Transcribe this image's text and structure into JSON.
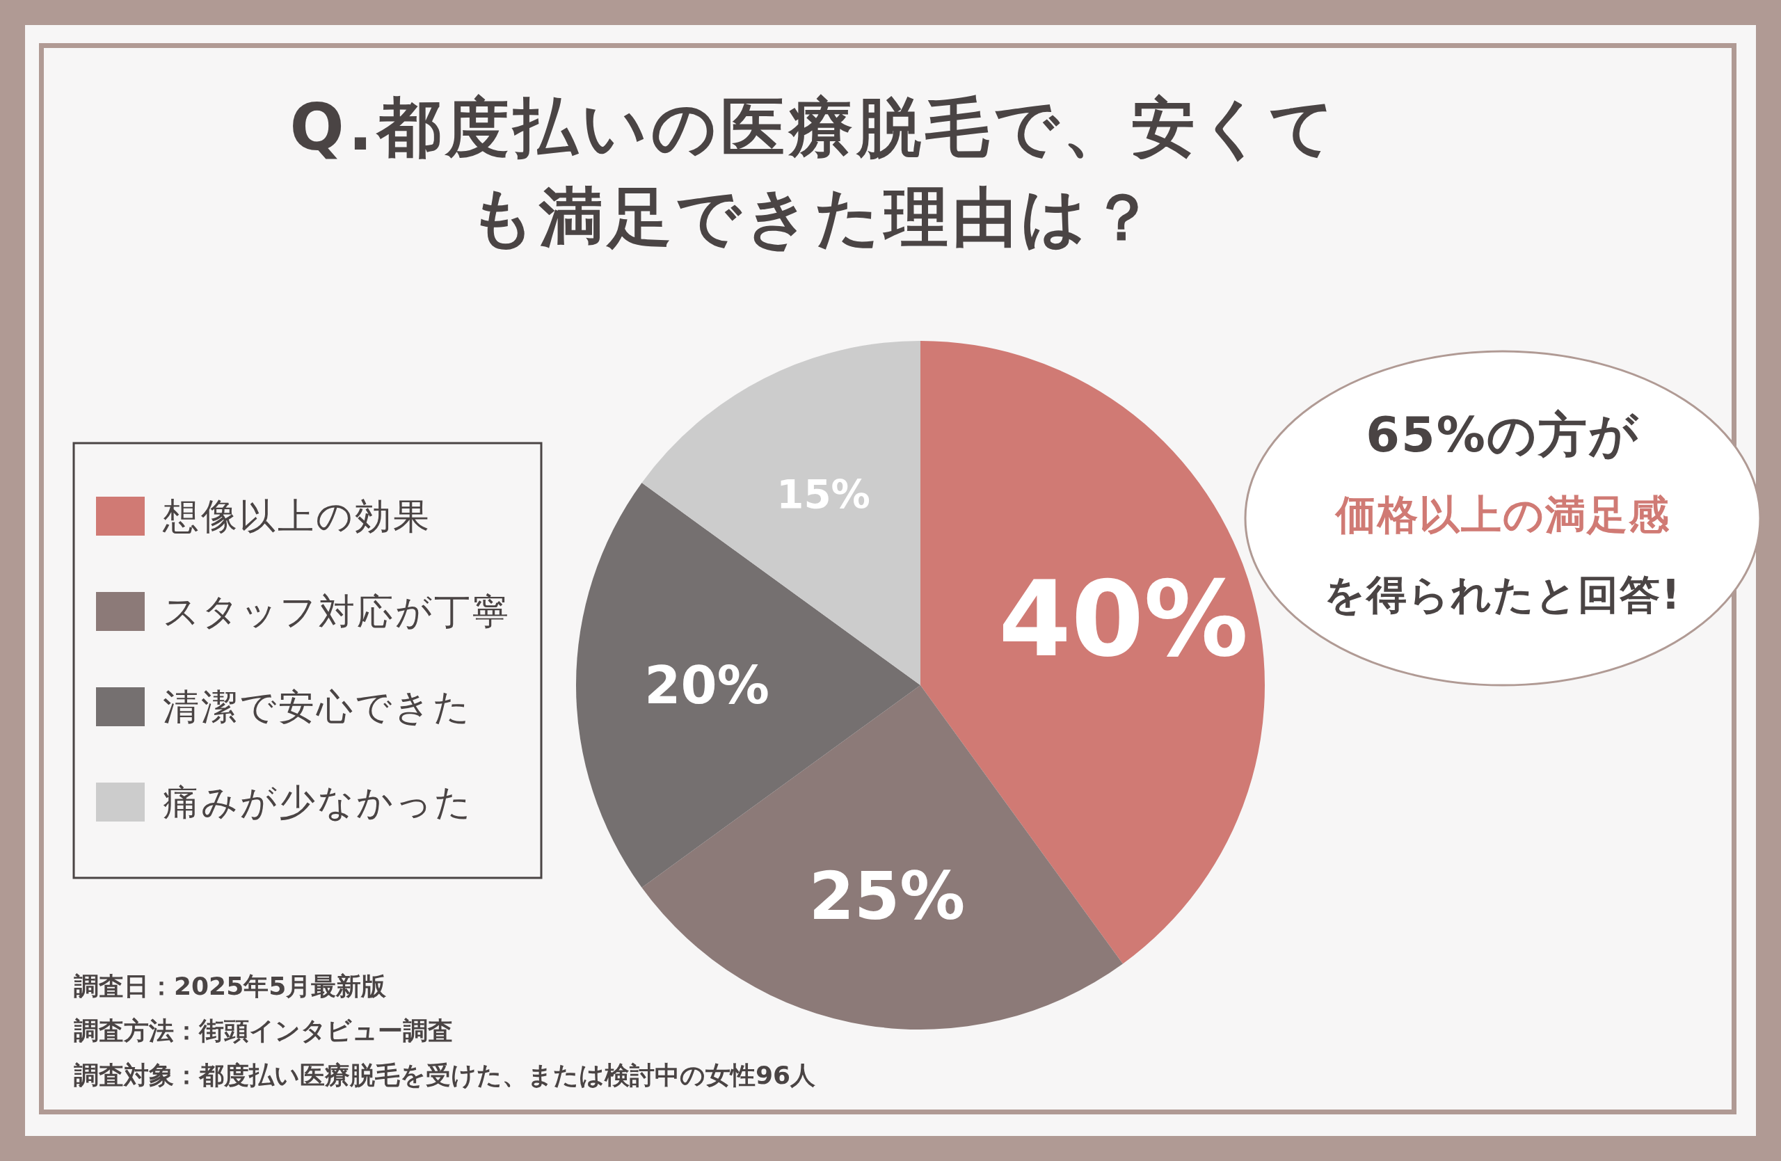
{
  "chart_data": {
    "type": "pie",
    "title": "Q.都度払いの医療脱毛で、安くても満足できた理由は？",
    "categories": [
      "想像以上の効果",
      "スタッフ対応が丁寧",
      "清潔で安心できた",
      "痛みが少なかった"
    ],
    "values": [
      40,
      25,
      20,
      15
    ],
    "value_labels": [
      "40%",
      "25%",
      "20%",
      "15%"
    ],
    "colors": [
      "#d07a74",
      "#8c7a78",
      "#757070",
      "#cccccc"
    ],
    "legend": "left",
    "annotations": [
      "65%の方が",
      "価格以上の満足感",
      "を得られたと回答!",
      "調査日：2025年5月最新版",
      "調査方法：街頭インタビュー調査",
      "調査対象：都度払い医療脱毛を受けた、または検討中の女性96人"
    ]
  }
}
